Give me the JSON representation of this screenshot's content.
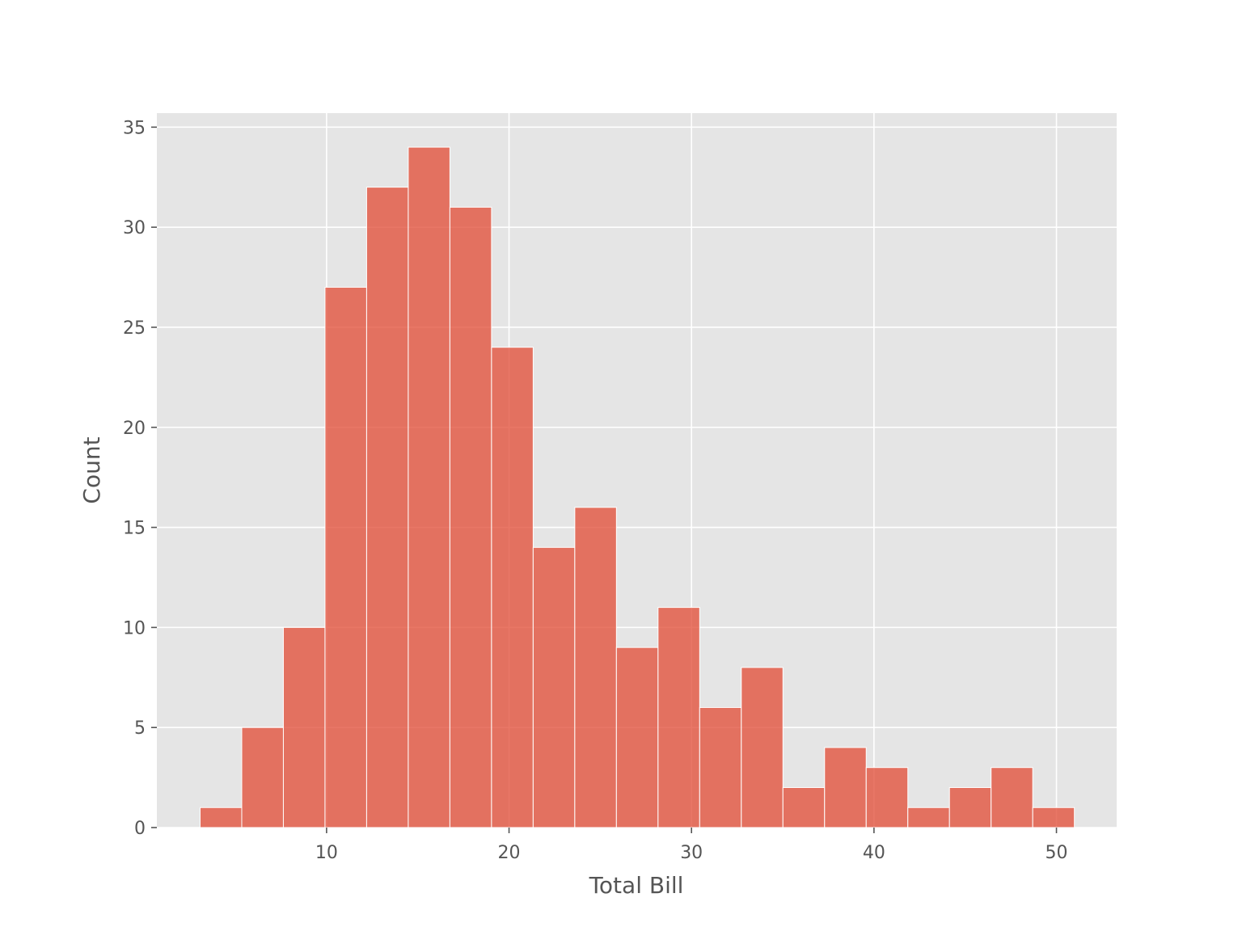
{
  "chart_data": {
    "type": "bar",
    "subtype": "histogram",
    "title": "",
    "xlabel": "Total Bill",
    "ylabel": "Count",
    "bin_edges": [
      3.07,
      5.3515,
      7.633,
      9.9145,
      12.196,
      14.4775,
      16.759,
      19.0405,
      21.322,
      23.6035,
      25.885,
      28.1665,
      30.448,
      32.7295,
      35.011,
      37.2925,
      39.574,
      41.8555,
      44.137,
      46.4185,
      48.7,
      50.9815
    ],
    "values": [
      1,
      5,
      10,
      27,
      32,
      34,
      31,
      24,
      14,
      16,
      9,
      11,
      6,
      8,
      2,
      4,
      3,
      1,
      2,
      3,
      1
    ],
    "xlim": [
      0.7,
      53.3
    ],
    "ylim": [
      0,
      35.7
    ],
    "x_ticks": [
      10,
      20,
      30,
      40,
      50
    ],
    "y_ticks": [
      0,
      5,
      10,
      15,
      20,
      25,
      30,
      35
    ],
    "grid": true,
    "legend": false,
    "colors": {
      "bar": "#e24a33",
      "background": "#e5e5e5",
      "grid": "#ffffff",
      "text": "#555555"
    }
  }
}
